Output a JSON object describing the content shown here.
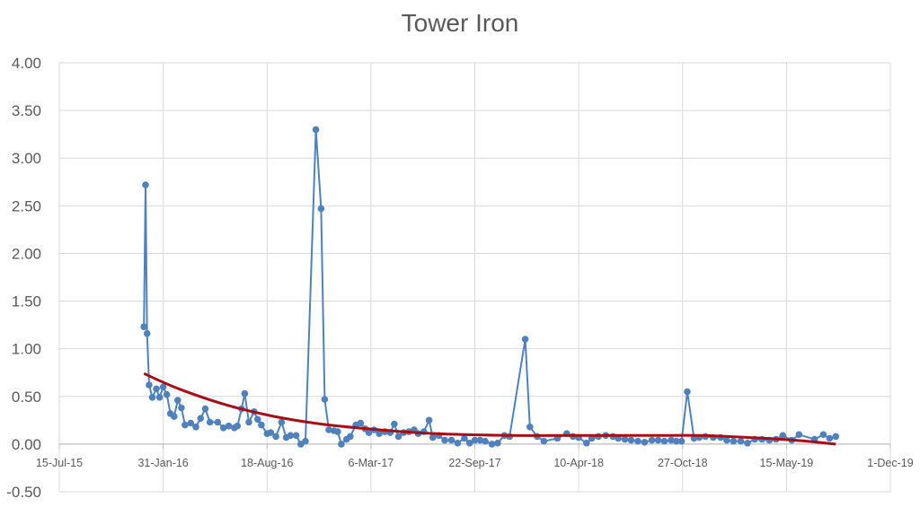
{
  "chart_data": {
    "type": "line",
    "title": "Tower Iron",
    "x_axis": {
      "min": "2015-07-15",
      "max": "2019-12-01",
      "tick_labels": [
        "15-Jul-15",
        "31-Jan-16",
        "18-Aug-16",
        "6-Mar-17",
        "22-Sep-17",
        "10-Apr-18",
        "27-Oct-18",
        "15-May-19",
        "1-Dec-19"
      ]
    },
    "y_axis": {
      "min": -0.5,
      "max": 4.0,
      "step": 0.5,
      "tick_labels": [
        "-0.50",
        "0.00",
        "0.50",
        "1.00",
        "1.50",
        "2.00",
        "2.50",
        "3.00",
        "3.50",
        "4.00"
      ]
    },
    "grid": true,
    "legend": "none",
    "series": [
      {
        "color": "#4f81bd",
        "points": [
          [
            "2015-12-25",
            1.23
          ],
          [
            "2015-12-28",
            2.72
          ],
          [
            "2015-12-31",
            1.16
          ],
          [
            "2016-01-04",
            0.62
          ],
          [
            "2016-01-10",
            0.49
          ],
          [
            "2016-01-18",
            0.58
          ],
          [
            "2016-01-24",
            0.49
          ],
          [
            "2016-01-31",
            0.6
          ],
          [
            "2016-02-07",
            0.52
          ],
          [
            "2016-02-14",
            0.32
          ],
          [
            "2016-02-21",
            0.29
          ],
          [
            "2016-02-28",
            0.46
          ],
          [
            "2016-03-06",
            0.38
          ],
          [
            "2016-03-13",
            0.2
          ],
          [
            "2016-03-24",
            0.22
          ],
          [
            "2016-04-03",
            0.18
          ],
          [
            "2016-04-12",
            0.27
          ],
          [
            "2016-04-21",
            0.37
          ],
          [
            "2016-04-30",
            0.23
          ],
          [
            "2016-05-15",
            0.23
          ],
          [
            "2016-05-26",
            0.17
          ],
          [
            "2016-06-05",
            0.19
          ],
          [
            "2016-06-16",
            0.17
          ],
          [
            "2016-06-22",
            0.19
          ],
          [
            "2016-06-30",
            0.37
          ],
          [
            "2016-07-06",
            0.53
          ],
          [
            "2016-07-14",
            0.23
          ],
          [
            "2016-07-24",
            0.34
          ],
          [
            "2016-07-31",
            0.26
          ],
          [
            "2016-08-07",
            0.2
          ],
          [
            "2016-08-18",
            0.11
          ],
          [
            "2016-08-25",
            0.12
          ],
          [
            "2016-09-04",
            0.08
          ],
          [
            "2016-09-15",
            0.23
          ],
          [
            "2016-09-24",
            0.07
          ],
          [
            "2016-10-02",
            0.09
          ],
          [
            "2016-10-13",
            0.09
          ],
          [
            "2016-10-22",
            0.0
          ],
          [
            "2016-10-31",
            0.03
          ],
          [
            "2016-11-20",
            3.3
          ],
          [
            "2016-11-30",
            2.47
          ],
          [
            "2016-12-07",
            0.47
          ],
          [
            "2016-12-15",
            0.15
          ],
          [
            "2016-12-25",
            0.14
          ],
          [
            "2017-01-01",
            0.13
          ],
          [
            "2017-01-08",
            0.0
          ],
          [
            "2017-01-18",
            0.05
          ],
          [
            "2017-01-25",
            0.08
          ],
          [
            "2017-02-05",
            0.2
          ],
          [
            "2017-02-14",
            0.22
          ],
          [
            "2017-02-23",
            0.16
          ],
          [
            "2017-03-02",
            0.12
          ],
          [
            "2017-03-12",
            0.15
          ],
          [
            "2017-03-22",
            0.11
          ],
          [
            "2017-04-02",
            0.13
          ],
          [
            "2017-04-12",
            0.12
          ],
          [
            "2017-04-20",
            0.21
          ],
          [
            "2017-04-28",
            0.08
          ],
          [
            "2017-05-08",
            0.12
          ],
          [
            "2017-05-18",
            0.13
          ],
          [
            "2017-05-28",
            0.15
          ],
          [
            "2017-06-05",
            0.11
          ],
          [
            "2017-06-16",
            0.13
          ],
          [
            "2017-06-26",
            0.25
          ],
          [
            "2017-07-03",
            0.07
          ],
          [
            "2017-07-15",
            0.09
          ],
          [
            "2017-07-26",
            0.04
          ],
          [
            "2017-08-08",
            0.04
          ],
          [
            "2017-08-20",
            0.01
          ],
          [
            "2017-09-02",
            0.06
          ],
          [
            "2017-09-12",
            0.01
          ],
          [
            "2017-09-22",
            0.04
          ],
          [
            "2017-10-02",
            0.04
          ],
          [
            "2017-10-12",
            0.03
          ],
          [
            "2017-10-25",
            0.0
          ],
          [
            "2017-11-05",
            0.01
          ],
          [
            "2017-11-18",
            0.09
          ],
          [
            "2017-11-28",
            0.08
          ],
          [
            "2017-12-28",
            1.1
          ],
          [
            "2018-01-06",
            0.18
          ],
          [
            "2018-01-20",
            0.08
          ],
          [
            "2018-02-02",
            0.03
          ],
          [
            "2018-02-28",
            0.06
          ],
          [
            "2018-03-18",
            0.11
          ],
          [
            "2018-03-30",
            0.08
          ],
          [
            "2018-04-10",
            0.07
          ],
          [
            "2018-04-25",
            0.01
          ],
          [
            "2018-05-05",
            0.06
          ],
          [
            "2018-05-18",
            0.08
          ],
          [
            "2018-06-01",
            0.09
          ],
          [
            "2018-06-15",
            0.08
          ],
          [
            "2018-06-25",
            0.06
          ],
          [
            "2018-07-08",
            0.05
          ],
          [
            "2018-07-20",
            0.04
          ],
          [
            "2018-08-02",
            0.03
          ],
          [
            "2018-08-15",
            0.02
          ],
          [
            "2018-08-29",
            0.04
          ],
          [
            "2018-09-10",
            0.04
          ],
          [
            "2018-09-22",
            0.03
          ],
          [
            "2018-10-05",
            0.04
          ],
          [
            "2018-10-15",
            0.03
          ],
          [
            "2018-10-25",
            0.03
          ],
          [
            "2018-11-05",
            0.55
          ],
          [
            "2018-11-18",
            0.06
          ],
          [
            "2018-11-28",
            0.07
          ],
          [
            "2018-12-10",
            0.08
          ],
          [
            "2018-12-25",
            0.07
          ],
          [
            "2019-01-08",
            0.07
          ],
          [
            "2019-01-20",
            0.04
          ],
          [
            "2019-02-02",
            0.03
          ],
          [
            "2019-02-16",
            0.03
          ],
          [
            "2019-03-01",
            0.01
          ],
          [
            "2019-03-15",
            0.05
          ],
          [
            "2019-03-29",
            0.05
          ],
          [
            "2019-04-12",
            0.04
          ],
          [
            "2019-04-25",
            0.05
          ],
          [
            "2019-05-08",
            0.09
          ],
          [
            "2019-05-25",
            0.04
          ],
          [
            "2019-06-08",
            0.1
          ],
          [
            "2019-07-08",
            0.05
          ],
          [
            "2019-07-25",
            0.1
          ],
          [
            "2019-08-06",
            0.06
          ],
          [
            "2019-08-18",
            0.08
          ]
        ]
      }
    ],
    "trendline": {
      "color": "#a50f15",
      "points": [
        [
          "2015-12-25",
          0.74
        ],
        [
          "2016-03-01",
          0.58
        ],
        [
          "2016-06-01",
          0.41
        ],
        [
          "2016-09-01",
          0.29
        ],
        [
          "2016-12-01",
          0.21
        ],
        [
          "2017-03-01",
          0.16
        ],
        [
          "2017-06-01",
          0.12
        ],
        [
          "2017-09-01",
          0.1
        ],
        [
          "2017-12-01",
          0.09
        ],
        [
          "2018-03-01",
          0.09
        ],
        [
          "2018-06-01",
          0.09
        ],
        [
          "2018-09-01",
          0.09
        ],
        [
          "2018-12-01",
          0.09
        ],
        [
          "2019-03-01",
          0.07
        ],
        [
          "2019-06-01",
          0.04
        ],
        [
          "2019-08-18",
          0.0
        ]
      ]
    }
  }
}
